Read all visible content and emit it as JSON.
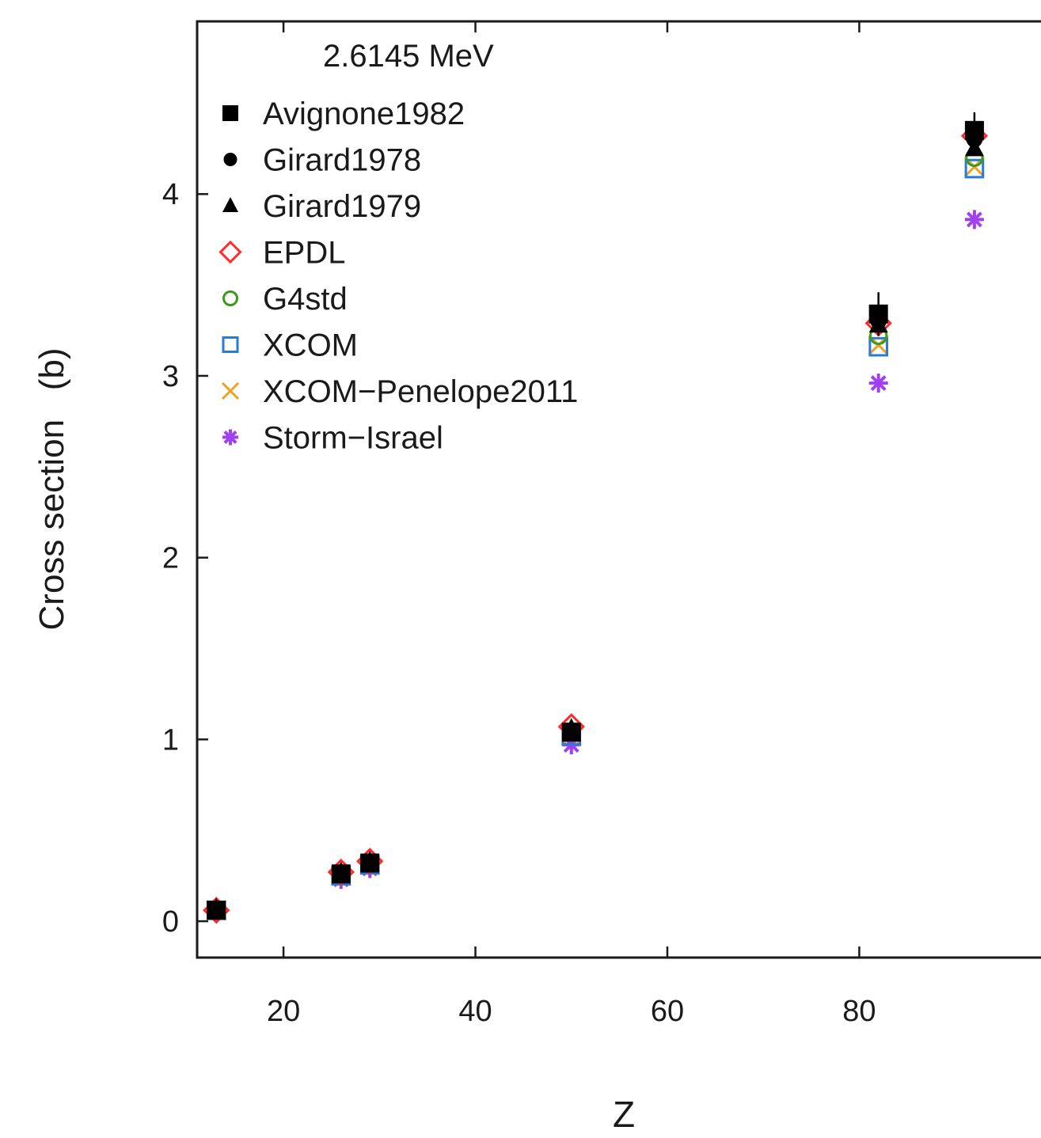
{
  "chart_data": {
    "type": "scatter",
    "annotation": "2.6145 MeV",
    "xlabel": "Z",
    "ylabel": "Cross section   (b)",
    "xlim": [
      11,
      101
    ],
    "ylim": [
      -0.2,
      4.95
    ],
    "xticks": [
      20,
      40,
      60,
      80
    ],
    "yticks": [
      0,
      1,
      2,
      3,
      4
    ],
    "grid": false,
    "legend_position": "top-left",
    "series": [
      {
        "name": "Avignone1982",
        "marker": "square-filled",
        "color": "#000000",
        "x": [
          13,
          26,
          29,
          50,
          82,
          92
        ],
        "y": [
          0.06,
          0.26,
          0.32,
          1.04,
          3.34,
          4.35
        ]
      },
      {
        "name": "Girard1978",
        "marker": "circle-filled",
        "color": "#000000",
        "x": [
          13,
          26,
          29,
          50,
          82,
          92
        ],
        "y": [
          0.06,
          0.26,
          0.32,
          1.05,
          3.3,
          4.3
        ]
      },
      {
        "name": "Girard1979",
        "marker": "triangle-filled",
        "color": "#000000",
        "x": [
          13,
          26,
          29,
          50,
          82,
          92
        ],
        "y": [
          0.07,
          0.27,
          0.33,
          1.06,
          3.28,
          4.25
        ]
      },
      {
        "name": "EPDL",
        "marker": "diamond-open",
        "color": "#ff2a2a",
        "x": [
          13,
          26,
          29,
          50,
          82,
          92
        ],
        "y": [
          0.06,
          0.27,
          0.33,
          1.07,
          3.29,
          4.32
        ]
      },
      {
        "name": "G4std",
        "marker": "circle-open",
        "color": "#3a9a1a",
        "x": [
          13,
          26,
          29,
          50,
          82,
          92
        ],
        "y": [
          0.06,
          0.26,
          0.32,
          1.04,
          3.22,
          4.2
        ]
      },
      {
        "name": "XCOM",
        "marker": "square-open",
        "color": "#2a7ad8",
        "x": [
          13,
          26,
          29,
          50,
          82,
          92
        ],
        "y": [
          0.06,
          0.25,
          0.31,
          1.02,
          3.16,
          4.14
        ]
      },
      {
        "name": "XCOM−Penelope2011",
        "marker": "x",
        "color": "#f0a020",
        "x": [
          13,
          26,
          29,
          50,
          82,
          92
        ],
        "y": [
          0.06,
          0.25,
          0.31,
          1.02,
          3.17,
          4.15
        ]
      },
      {
        "name": "Storm−Israel",
        "marker": "asterisk",
        "color": "#a040f0",
        "x": [
          13,
          26,
          29,
          50,
          82,
          92
        ],
        "y": [
          0.05,
          0.23,
          0.29,
          0.97,
          2.96,
          3.86
        ]
      }
    ],
    "error_bars": {
      "series": "Avignone1982",
      "x": [
        82,
        92
      ],
      "err": [
        0.12,
        0.1
      ]
    }
  }
}
